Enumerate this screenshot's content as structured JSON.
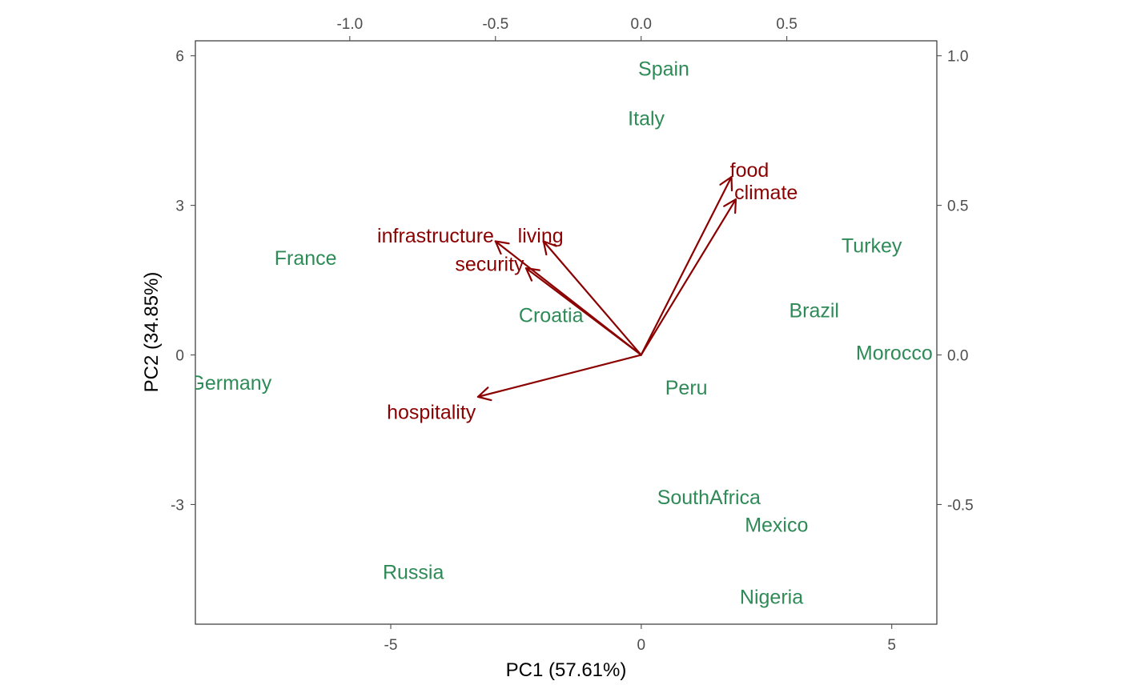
{
  "chart_data": {
    "type": "scatter",
    "subtype": "pca-biplot",
    "title": "",
    "xlabel": "PC1 (57.61%)",
    "ylabel": "PC2 (34.85%)",
    "xlim": [
      -8.9,
      5.9
    ],
    "ylim": [
      -5.4,
      6.3
    ],
    "xticks": [
      -5,
      0,
      5
    ],
    "xtick_labels": [
      "-5",
      "0",
      "5"
    ],
    "yticks": [
      -3,
      0,
      3,
      6
    ],
    "ytick_labels": [
      "-3",
      "0",
      "3",
      "6"
    ],
    "secondary_xlim": [
      -1.53,
      1.015
    ],
    "secondary_ylim": [
      -0.9,
      1.05
    ],
    "secondary_xticks": [
      -1.0,
      -0.5,
      0.0,
      0.5
    ],
    "secondary_xtick_labels": [
      "-1.0",
      "-0.5",
      "0.0",
      "0.5"
    ],
    "secondary_yticks": [
      -0.5,
      0.0,
      0.5,
      1.0
    ],
    "secondary_ytick_labels": [
      "-0.5",
      "0.0",
      "0.5",
      "1.0"
    ],
    "grid": false,
    "colors": {
      "observations": "#2e8b57",
      "variables": "#8b0000",
      "axis": "#333333",
      "ticks": "#4d4d4d"
    },
    "observations": [
      {
        "label": "Spain",
        "x": 0.45,
        "y": 5.75
      },
      {
        "label": "Italy",
        "x": 0.1,
        "y": 4.75
      },
      {
        "label": "France",
        "x": -6.7,
        "y": 1.95
      },
      {
        "label": "Turkey",
        "x": 4.6,
        "y": 2.2
      },
      {
        "label": "Brazil",
        "x": 3.45,
        "y": 0.9
      },
      {
        "label": "Croatia",
        "x": -1.8,
        "y": 0.8
      },
      {
        "label": "Morocco",
        "x": 5.05,
        "y": 0.05
      },
      {
        "label": "Germany",
        "x": -8.2,
        "y": -0.55
      },
      {
        "label": "Peru",
        "x": 0.9,
        "y": -0.65
      },
      {
        "label": "SouthAfrica",
        "x": 1.35,
        "y": -2.85
      },
      {
        "label": "Mexico",
        "x": 2.7,
        "y": -3.4
      },
      {
        "label": "Russia",
        "x": -4.55,
        "y": -4.35
      },
      {
        "label": "Nigeria",
        "x": 2.6,
        "y": -4.85
      }
    ],
    "variables": [
      {
        "label": "food",
        "x": 0.31,
        "y": 0.595,
        "label_x": 0.305,
        "label_y": 0.62,
        "anchor": "start"
      },
      {
        "label": "climate",
        "x": 0.325,
        "y": 0.52,
        "label_x": 0.32,
        "label_y": 0.545,
        "anchor": "start"
      },
      {
        "label": "infrastructure",
        "x": -0.5,
        "y": 0.38,
        "label_x": -0.505,
        "label_y": 0.4,
        "anchor": "end"
      },
      {
        "label": "living",
        "x": -0.335,
        "y": 0.38,
        "label_x": -0.345,
        "label_y": 0.4,
        "anchor": "middle"
      },
      {
        "label": "security",
        "x": -0.395,
        "y": 0.29,
        "label_x": -0.52,
        "label_y": 0.305,
        "anchor": "middle"
      },
      {
        "label": "hospitality",
        "x": -0.56,
        "y": -0.14,
        "label_x": -0.72,
        "label_y": -0.19,
        "anchor": "middle"
      }
    ]
  }
}
